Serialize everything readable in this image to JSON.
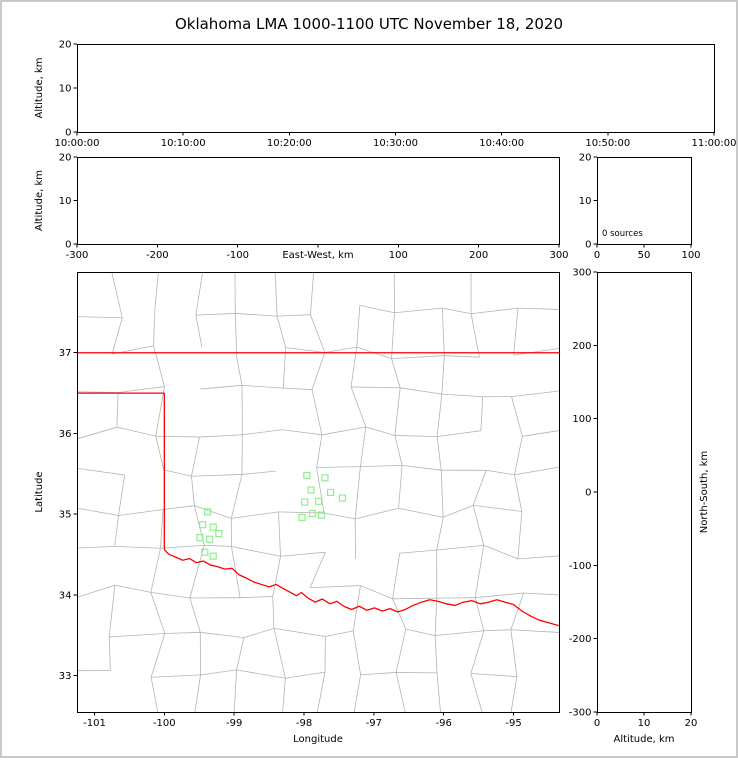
{
  "figure": {
    "title": "Oklahoma LMA 1000-1100 UTC November 18, 2020"
  },
  "chart_data": [
    {
      "id": "time-height",
      "type": "scatter",
      "ylabel": "Altitude, km",
      "ylim": [
        0,
        20
      ],
      "yticks": [
        0,
        10,
        20
      ],
      "xtick_labels": [
        "10:00:00",
        "10:10:00",
        "10:20:00",
        "10:30:00",
        "10:40:00",
        "10:50:00",
        "11:00:00"
      ],
      "points": []
    },
    {
      "id": "east-west-height",
      "type": "scatter",
      "xlabel": "East-West, km",
      "xlabel_inline": true,
      "ylabel": "Altitude, km",
      "xlim": [
        -300,
        300
      ],
      "xticks": [
        -300,
        -200,
        -100,
        100,
        200,
        300
      ],
      "xtick_marks": [
        -300,
        -200,
        -100,
        0,
        100,
        200,
        300
      ],
      "ylim": [
        0,
        20
      ],
      "yticks": [
        0,
        10,
        20
      ],
      "points": []
    },
    {
      "id": "altitude-source-histogram",
      "type": "bar",
      "annotation": "0 sources",
      "xlim": [
        0,
        100
      ],
      "xticks": [
        0,
        50,
        100
      ],
      "ylim": [
        0,
        20
      ],
      "yticks": [
        0,
        10,
        20
      ],
      "values": []
    },
    {
      "id": "plan-view-map",
      "type": "scatter",
      "xlabel": "Longitude",
      "ylabel": "Latitude",
      "xlim": [
        -101.25,
        -94.35
      ],
      "ylim": [
        32.55,
        38.0
      ],
      "xticks": [
        -101,
        -100,
        -99,
        -98,
        -97,
        -96,
        -95
      ],
      "yticks": [
        33,
        34,
        35,
        36,
        37
      ],
      "station_markers": [
        [
          -99.38,
          35.03
        ],
        [
          -99.45,
          34.87
        ],
        [
          -99.3,
          34.84
        ],
        [
          -99.49,
          34.71
        ],
        [
          -99.35,
          34.69
        ],
        [
          -99.22,
          34.76
        ],
        [
          -99.42,
          34.53
        ],
        [
          -99.3,
          34.48
        ],
        [
          -97.96,
          35.48
        ],
        [
          -97.7,
          35.45
        ],
        [
          -97.9,
          35.3
        ],
        [
          -97.62,
          35.27
        ],
        [
          -97.45,
          35.2
        ],
        [
          -97.99,
          35.15
        ],
        [
          -97.79,
          35.16
        ],
        [
          -97.88,
          35.01
        ],
        [
          -98.03,
          34.96
        ],
        [
          -97.75,
          34.99
        ]
      ],
      "state_border": {
        "kansas_oklahoma_lat_37": [
          [
            -101.25,
            37.0
          ],
          [
            -94.35,
            37.0
          ]
        ],
        "panhandle_south_lat_36_5": [
          [
            -101.25,
            36.5
          ],
          [
            -100.0,
            36.5
          ]
        ],
        "texas_oklahoma_lon_100": [
          [
            -100.0,
            36.5
          ],
          [
            -100.0,
            34.56
          ]
        ],
        "red_river": [
          [
            -100.0,
            34.56
          ],
          [
            -99.93,
            34.5
          ],
          [
            -99.84,
            34.47
          ],
          [
            -99.74,
            34.43
          ],
          [
            -99.64,
            34.45
          ],
          [
            -99.54,
            34.4
          ],
          [
            -99.44,
            34.42
          ],
          [
            -99.34,
            34.37
          ],
          [
            -99.24,
            34.35
          ],
          [
            -99.13,
            34.32
          ],
          [
            -99.03,
            34.33
          ],
          [
            -98.93,
            34.25
          ],
          [
            -98.83,
            34.21
          ],
          [
            -98.72,
            34.16
          ],
          [
            -98.61,
            34.13
          ],
          [
            -98.5,
            34.1
          ],
          [
            -98.4,
            34.13
          ],
          [
            -98.3,
            34.08
          ],
          [
            -98.19,
            34.03
          ],
          [
            -98.11,
            33.99
          ],
          [
            -98.04,
            34.03
          ],
          [
            -97.94,
            33.96
          ],
          [
            -97.84,
            33.91
          ],
          [
            -97.74,
            33.95
          ],
          [
            -97.63,
            33.89
          ],
          [
            -97.53,
            33.92
          ],
          [
            -97.43,
            33.86
          ],
          [
            -97.32,
            33.82
          ],
          [
            -97.21,
            33.86
          ],
          [
            -97.1,
            33.81
          ],
          [
            -96.99,
            33.84
          ],
          [
            -96.88,
            33.8
          ],
          [
            -96.77,
            33.83
          ],
          [
            -96.66,
            33.79
          ],
          [
            -96.55,
            33.82
          ],
          [
            -96.44,
            33.87
          ],
          [
            -96.32,
            33.91
          ],
          [
            -96.2,
            33.94
          ],
          [
            -96.08,
            33.92
          ],
          [
            -95.96,
            33.89
          ],
          [
            -95.84,
            33.87
          ],
          [
            -95.72,
            33.91
          ],
          [
            -95.6,
            33.93
          ],
          [
            -95.48,
            33.89
          ],
          [
            -95.36,
            33.91
          ],
          [
            -95.24,
            33.94
          ],
          [
            -95.12,
            33.91
          ],
          [
            -95.0,
            33.88
          ],
          [
            -94.88,
            33.8
          ],
          [
            -94.76,
            33.74
          ],
          [
            -94.64,
            33.69
          ],
          [
            -94.52,
            33.66
          ],
          [
            -94.35,
            33.62
          ]
        ]
      },
      "colors": {
        "station_marker": "#90EE90",
        "state_border": "#ff0000",
        "county_lines": "#b4b4b4",
        "axis": "#000000"
      }
    },
    {
      "id": "north-south-height",
      "type": "scatter",
      "xlabel": "Altitude, km",
      "ylabel": "North-South, km",
      "xlim": [
        0,
        20
      ],
      "xticks": [
        0,
        10,
        20
      ],
      "ylim": [
        -300,
        300
      ],
      "yticks": [
        -300,
        -200,
        -100,
        0,
        100,
        200,
        300
      ],
      "points": []
    }
  ]
}
